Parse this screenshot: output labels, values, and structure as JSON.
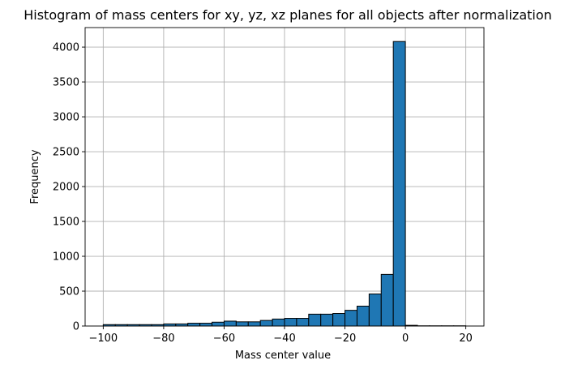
{
  "chart_data": {
    "type": "bar",
    "title": "Histogram of mass centers for xy, yz, xz planes for all objects after normalization",
    "xlabel": "Mass center value",
    "ylabel": "Frequency",
    "xlim": [
      -106,
      26
    ],
    "ylim": [
      0,
      4280
    ],
    "bar_color": "#1f77b4",
    "grid": true,
    "xticks": [
      -100,
      -80,
      -60,
      -40,
      -20,
      0,
      20
    ],
    "xtick_labels": [
      "−100",
      "−80",
      "−60",
      "−40",
      "−20",
      "0",
      "20"
    ],
    "yticks": [
      0,
      500,
      1000,
      1500,
      2000,
      2500,
      3000,
      3500,
      4000
    ],
    "ytick_labels": [
      "0",
      "500",
      "1000",
      "1500",
      "2000",
      "2500",
      "3000",
      "3500",
      "4000"
    ],
    "bin_edges": [
      -100,
      -96,
      -92,
      -88,
      -84,
      -80,
      -76,
      -72,
      -68,
      -64,
      -60,
      -56,
      -52,
      -48,
      -44,
      -40,
      -36,
      -32,
      -28,
      -24,
      -20,
      -16,
      -12,
      -8,
      -4,
      0,
      4,
      8,
      12,
      16,
      20
    ],
    "values": [
      20,
      20,
      20,
      20,
      20,
      30,
      30,
      40,
      40,
      55,
      70,
      60,
      60,
      80,
      100,
      110,
      110,
      170,
      170,
      180,
      225,
      285,
      460,
      740,
      4080,
      10,
      3,
      3,
      3,
      3
    ]
  }
}
